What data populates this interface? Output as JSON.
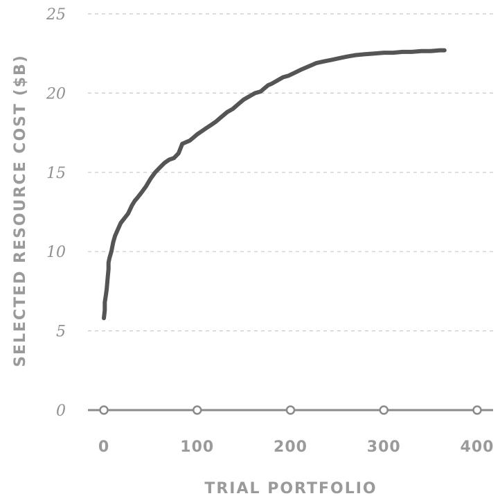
{
  "chart_data": {
    "type": "line",
    "title": "",
    "xlabel": "TRIAL PORTFOLIO",
    "ylabel": "SELECTED RESOURCE COST ($B)",
    "xlim": [
      0,
      400
    ],
    "ylim": [
      0,
      25
    ],
    "x_ticks": [
      "0",
      "100",
      "200",
      "300",
      "400"
    ],
    "y_ticks": [
      "0",
      "5",
      "10",
      "15",
      "20",
      "25"
    ],
    "grid": true,
    "line_color": "#555555",
    "axis_color": "#8a8a8a",
    "series": [
      {
        "x": [
          0,
          1,
          1,
          2,
          3,
          4,
          5,
          5,
          6,
          8,
          10,
          12,
          15,
          18,
          22,
          26,
          30,
          33,
          36,
          40,
          45,
          50,
          55,
          60,
          65,
          70,
          75,
          80,
          82,
          84,
          88,
          92,
          96,
          100,
          105,
          110,
          115,
          120,
          126,
          132,
          138,
          144,
          150,
          156,
          162,
          168,
          172,
          176,
          180,
          186,
          192,
          198,
          205,
          212,
          220,
          228,
          236,
          244,
          252,
          260,
          270,
          280,
          290,
          300,
          310,
          320,
          330,
          340,
          350,
          360,
          365
        ],
        "y": [
          5.8,
          6.3,
          6.8,
          7.2,
          7.6,
          8.3,
          8.9,
          9.3,
          9.6,
          10.0,
          10.6,
          11.0,
          11.4,
          11.8,
          12.1,
          12.4,
          12.9,
          13.2,
          13.4,
          13.7,
          14.1,
          14.6,
          15.0,
          15.3,
          15.6,
          15.8,
          15.9,
          16.2,
          16.5,
          16.8,
          16.9,
          17.0,
          17.2,
          17.4,
          17.6,
          17.8,
          18.0,
          18.2,
          18.5,
          18.8,
          19.0,
          19.3,
          19.6,
          19.8,
          20.0,
          20.1,
          20.3,
          20.5,
          20.6,
          20.8,
          21.0,
          21.1,
          21.3,
          21.5,
          21.7,
          21.9,
          22.0,
          22.1,
          22.2,
          22.3,
          22.4,
          22.45,
          22.5,
          22.55,
          22.55,
          22.6,
          22.6,
          22.65,
          22.65,
          22.7,
          22.7
        ]
      }
    ]
  }
}
